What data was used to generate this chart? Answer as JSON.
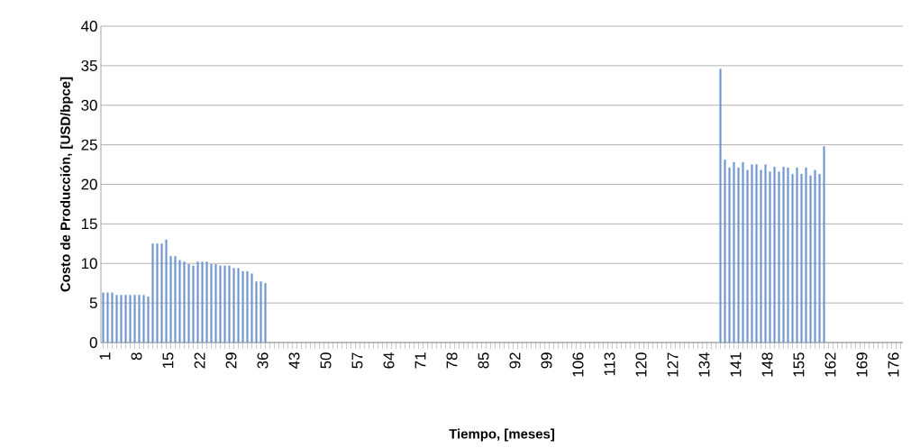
{
  "chart_data": {
    "type": "bar",
    "xlabel": "Tiempo,  [meses]",
    "ylabel": "Costo de Producción,  [USD/bpce]",
    "categories": [
      "1",
      null,
      null,
      null,
      null,
      null,
      null,
      "8",
      null,
      null,
      null,
      null,
      null,
      null,
      "15",
      null,
      null,
      null,
      null,
      null,
      null,
      "22",
      null,
      null,
      null,
      null,
      null,
      null,
      "29",
      null,
      null,
      null,
      null,
      null,
      null,
      "36",
      null,
      null,
      null,
      null,
      null,
      null,
      "43",
      null,
      null,
      null,
      null,
      null,
      null,
      "50",
      null,
      null,
      null,
      null,
      null,
      null,
      "57",
      null,
      null,
      null,
      null,
      null,
      null,
      "64",
      null,
      null,
      null,
      null,
      null,
      null,
      "71",
      null,
      null,
      null,
      null,
      null,
      null,
      "78",
      null,
      null,
      null,
      null,
      null,
      null,
      "85",
      null,
      null,
      null,
      null,
      null,
      null,
      "92",
      null,
      null,
      null,
      null,
      null,
      null,
      "99",
      null,
      null,
      null,
      null,
      null,
      null,
      "106",
      null,
      null,
      null,
      null,
      null,
      null,
      "113",
      null,
      null,
      null,
      null,
      null,
      null,
      "120",
      null,
      null,
      null,
      null,
      null,
      null,
      "127",
      null,
      null,
      null,
      null,
      null,
      null,
      "134",
      null,
      null,
      null,
      null,
      null,
      null,
      "141",
      null,
      null,
      null,
      null,
      null,
      null,
      "148",
      null,
      null,
      null,
      null,
      null,
      null,
      "155",
      null,
      null,
      null,
      null,
      null,
      null,
      "162",
      null,
      null,
      null,
      null,
      null,
      null,
      "169",
      null,
      null,
      null,
      null,
      null,
      null,
      "176",
      null,
      null
    ],
    "values": [
      6.3,
      6.3,
      6.3,
      6.0,
      6.0,
      6.0,
      6.0,
      6.0,
      6.0,
      6.0,
      5.8,
      12.5,
      12.5,
      12.5,
      13.0,
      10.9,
      10.9,
      10.4,
      10.2,
      9.9,
      9.7,
      10.2,
      10.2,
      10.2,
      9.9,
      9.9,
      9.7,
      9.7,
      9.7,
      9.4,
      9.4,
      9.0,
      9.0,
      8.7,
      7.7,
      7.7,
      7.5,
      0,
      0,
      0,
      0,
      0,
      0,
      0,
      0,
      0,
      0,
      0,
      0,
      0,
      0,
      0,
      0,
      0,
      0,
      0,
      0,
      0,
      0,
      0,
      0,
      0,
      0,
      0,
      0,
      0,
      0,
      0,
      0,
      0,
      0,
      0,
      0,
      0,
      0,
      0,
      0,
      0,
      0,
      0,
      0,
      0,
      0,
      0,
      0,
      0,
      0,
      0,
      0,
      0,
      0,
      0,
      0,
      0,
      0,
      0,
      0,
      0,
      0,
      0,
      0,
      0,
      0,
      0,
      0,
      0,
      0,
      0,
      0,
      0,
      0,
      0,
      0,
      0,
      0,
      0,
      0,
      0,
      0,
      0,
      0,
      0,
      0,
      0,
      0,
      0,
      0,
      0,
      0,
      0,
      0,
      0,
      0,
      0,
      0,
      0,
      0,
      34.6,
      23.1,
      22.1,
      22.8,
      22.1,
      22.8,
      21.8,
      22.5,
      22.5,
      21.8,
      22.5,
      21.6,
      22.2,
      21.6,
      22.2,
      22.1,
      21.3,
      22.1,
      21.3,
      22.1,
      21.1,
      21.8,
      21.3,
      24.8,
      0,
      0,
      0,
      0,
      0,
      0,
      0,
      0,
      0,
      0,
      0,
      0,
      0,
      0,
      0,
      0,
      0
    ],
    "color": "#6d97d0",
    "ylim": [
      0,
      40
    ],
    "yticks": [
      0,
      5,
      10,
      15,
      20,
      25,
      30,
      35,
      40
    ],
    "grid": "y"
  }
}
